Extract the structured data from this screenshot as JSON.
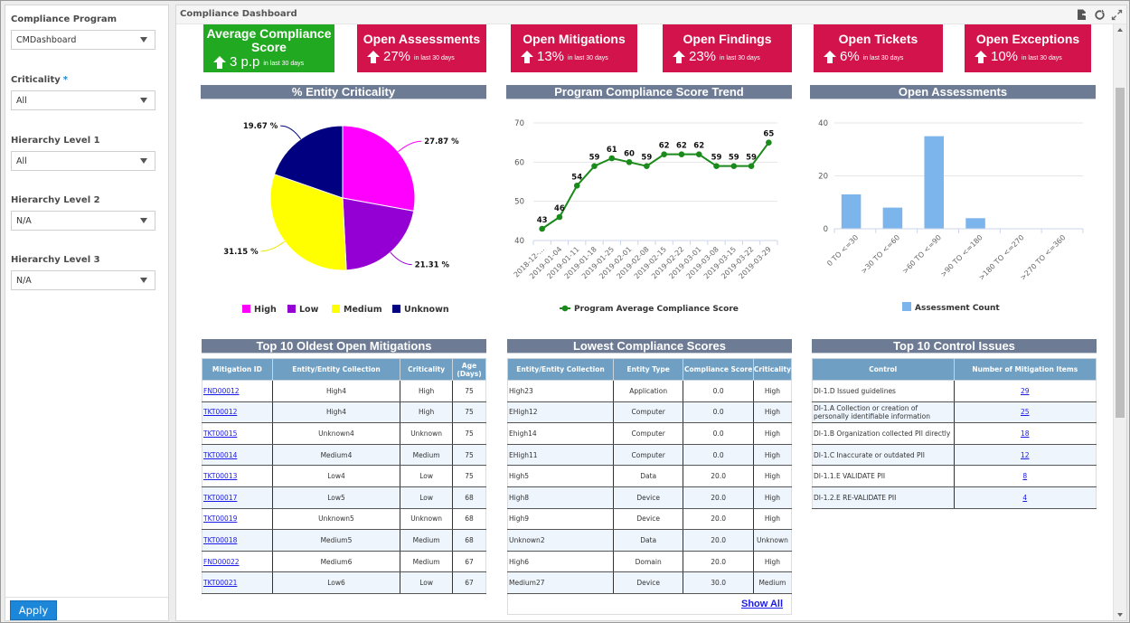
{
  "sidebar": {
    "filters": [
      {
        "label": "Compliance Program",
        "required": false,
        "value": "CMDashboard"
      },
      {
        "label": "Criticality",
        "required": true,
        "value": "All"
      },
      {
        "label": "Hierarchy Level 1",
        "required": false,
        "value": "All"
      },
      {
        "label": "Hierarchy Level 2",
        "required": false,
        "value": "N/A"
      },
      {
        "label": "Hierarchy Level 3",
        "required": false,
        "value": "N/A"
      }
    ],
    "required_marker": "*",
    "apply_label": "Apply"
  },
  "main": {
    "title": "Compliance Dashboard",
    "header_icons": [
      "export-icon",
      "refresh-icon",
      "expand-icon"
    ]
  },
  "kpis": [
    {
      "title": "Average Compliance Score",
      "value": "3 p.p",
      "sub": "in last 30 days",
      "trend": "up",
      "color": "#21a921"
    },
    {
      "title": "Open Assessments",
      "value": "27%",
      "sub": "in last 30 days",
      "trend": "up",
      "color": "#d3134b"
    },
    {
      "title": "Open Mitigations",
      "value": "13%",
      "sub": "in last 30 days",
      "trend": "up",
      "color": "#d3134b"
    },
    {
      "title": "Open Findings",
      "value": "23%",
      "sub": "in last 30 days",
      "trend": "up",
      "color": "#d3134b"
    },
    {
      "title": "Open Tickets",
      "value": "6%",
      "sub": "in last 30 days",
      "trend": "up",
      "color": "#d3134b"
    },
    {
      "title": "Open Exceptions",
      "value": "10%",
      "sub": "in last 30 days",
      "trend": "up",
      "color": "#d3134b"
    }
  ],
  "chart_data": [
    {
      "type": "pie",
      "title": "% Entity Criticality",
      "categories": [
        "High",
        "Low",
        "Medium",
        "Unknown"
      ],
      "values": [
        27.87,
        21.31,
        31.15,
        19.67
      ],
      "labels": [
        "27.87 %",
        "21.31 %",
        "31.15 %",
        "19.67 %"
      ],
      "colors": [
        "#ff00ff",
        "#9400d3",
        "#ffff00",
        "#000080"
      ],
      "legend": "bottom"
    },
    {
      "type": "line",
      "title": "Program Compliance Score Trend",
      "x": [
        "2018-12-...",
        "2019-01-04",
        "2019-01-11",
        "2019-01-18",
        "2019-01-25",
        "2019-02-01",
        "2019-02-08",
        "2019-02-15",
        "2019-02-22",
        "2019-03-01",
        "2019-03-08",
        "2019-03-15",
        "2019-03-22",
        "2019-03-29"
      ],
      "series": [
        {
          "name": "Program Average Compliance Score",
          "values": [
            43,
            46,
            54,
            59,
            61,
            60,
            59,
            62,
            62,
            62,
            59,
            59,
            59,
            65
          ],
          "color": "#1a8a1a"
        }
      ],
      "yticks": [
        40,
        50,
        60,
        70
      ],
      "ylim": [
        40,
        70
      ],
      "grid": true,
      "legend": "bottom"
    },
    {
      "type": "bar",
      "title": "Open Assessments",
      "categories": [
        "0 TO <=30",
        ">30 TO <=60",
        ">60 TO <=90",
        ">90 TO <=180",
        ">180 TO <=270",
        ">270 TO <=360"
      ],
      "series": [
        {
          "name": "Assessment Count",
          "values": [
            13,
            8,
            35,
            4,
            0,
            0
          ],
          "color": "#7cb5ec"
        }
      ],
      "yticks": [
        0,
        20,
        40
      ],
      "ylim": [
        0,
        40
      ],
      "grid": true,
      "legend": "bottom"
    }
  ],
  "mitigations": {
    "title": "Top 10 Oldest Open Mitigations",
    "columns": [
      "Mitigation ID",
      "Entity/Entity Collection",
      "Criticality",
      "Age (Days)"
    ],
    "rows": [
      [
        "FND00012",
        "High4",
        "High",
        "75"
      ],
      [
        "TKT00012",
        "High4",
        "High",
        "75"
      ],
      [
        "TKT00015",
        "Unknown4",
        "Unknown",
        "75"
      ],
      [
        "TKT00014",
        "Medium4",
        "Medium",
        "75"
      ],
      [
        "TKT00013",
        "Low4",
        "Low",
        "75"
      ],
      [
        "TKT00017",
        "Low5",
        "Low",
        "68"
      ],
      [
        "TKT00019",
        "Unknown5",
        "Unknown",
        "68"
      ],
      [
        "TKT00018",
        "Medium5",
        "Medium",
        "68"
      ],
      [
        "FND00022",
        "Medium6",
        "Medium",
        "67"
      ],
      [
        "TKT00021",
        "Low6",
        "Low",
        "67"
      ]
    ]
  },
  "lowest_scores": {
    "title": "Lowest Compliance Scores",
    "columns": [
      "Entity/Entity Collection",
      "Entity Type",
      "Compliance Score",
      "Criticality"
    ],
    "rows": [
      [
        "High23",
        "Application",
        "0.0",
        "High"
      ],
      [
        "EHigh12",
        "Computer",
        "0.0",
        "High"
      ],
      [
        "Ehigh14",
        "Computer",
        "0.0",
        "High"
      ],
      [
        "EHigh11",
        "Computer",
        "0.0",
        "High"
      ],
      [
        "High5",
        "Data",
        "20.0",
        "High"
      ],
      [
        "High8",
        "Device",
        "20.0",
        "High"
      ],
      [
        "High9",
        "Device",
        "20.0",
        "High"
      ],
      [
        "Unknown2",
        "Data",
        "20.0",
        "Unknown"
      ],
      [
        "High6",
        "Domain",
        "20.0",
        "High"
      ],
      [
        "Medium27",
        "Device",
        "30.0",
        "Medium"
      ]
    ],
    "show_all_label": "Show All"
  },
  "control_issues": {
    "title": "Top 10 Control Issues",
    "columns": [
      "Control",
      "Number of Mitigation Items"
    ],
    "rows": [
      [
        "DI-1.D Issued guidelines",
        "29"
      ],
      [
        "DI-1.A Collection or creation of personally identifiable information",
        "25"
      ],
      [
        "DI-1.B Organization collected PII directly",
        "18"
      ],
      [
        "DI-1.C Inaccurate or outdated PII",
        "12"
      ],
      [
        "DI-1.1.E VALIDATE PII",
        "8"
      ],
      [
        "DI-1.2.E RE-VALIDATE PII",
        "4"
      ]
    ]
  }
}
